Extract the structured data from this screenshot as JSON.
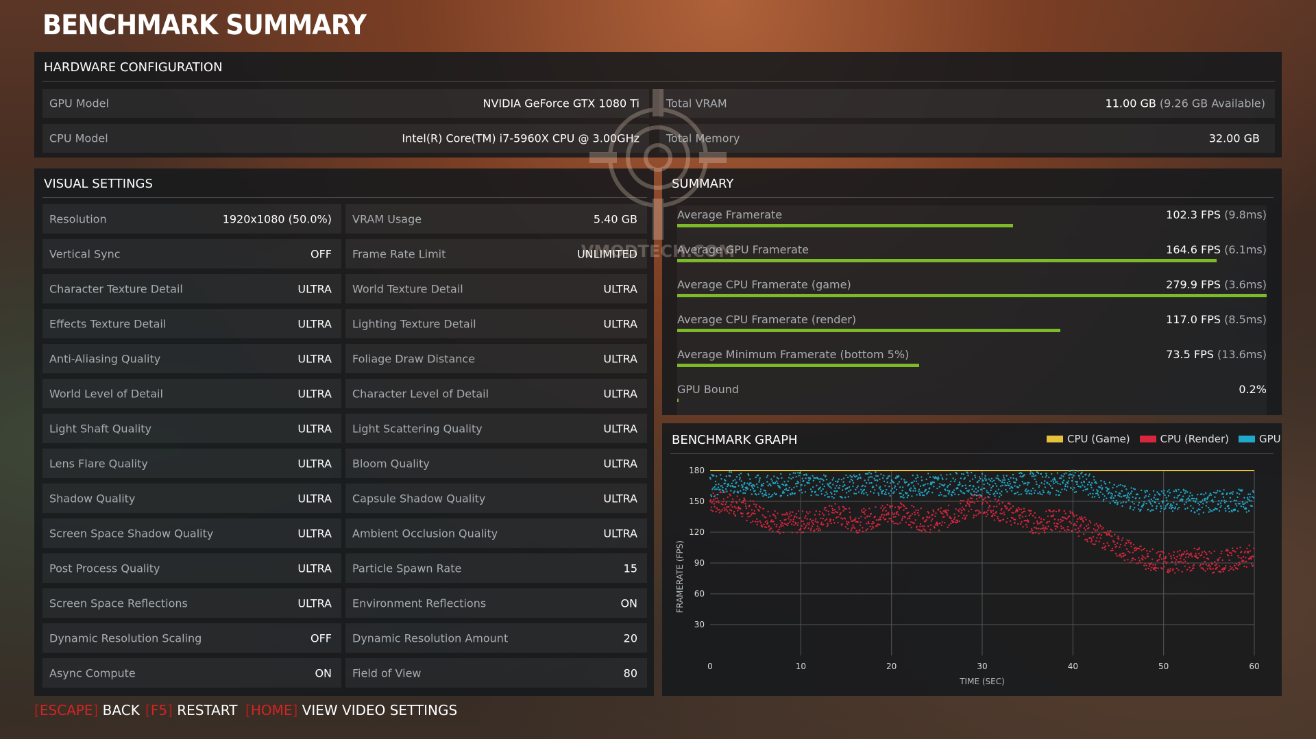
{
  "page_title": "BENCHMARK SUMMARY",
  "hardware": {
    "title": "HARDWARE CONFIGURATION",
    "gpu_label": "GPU Model",
    "gpu_value": "NVIDIA GeForce GTX 1080 Ti",
    "cpu_label": "CPU Model",
    "cpu_value": "Intel(R) Core(TM) i7-5960X CPU @ 3.00GHz",
    "vram_label": "Total VRAM",
    "vram_value": "11.00 GB",
    "vram_available": "(9.26 GB Available)",
    "memory_label": "Total Memory",
    "memory_value": "32.00 GB"
  },
  "visual": {
    "title": "VISUAL SETTINGS",
    "left": [
      {
        "label": "Resolution",
        "value": "1920x1080 (50.0%)"
      },
      {
        "label": "Vertical Sync",
        "value": "OFF"
      },
      {
        "label": "Character Texture Detail",
        "value": "ULTRA"
      },
      {
        "label": "Effects Texture Detail",
        "value": "ULTRA"
      },
      {
        "label": "Anti-Aliasing Quality",
        "value": "ULTRA"
      },
      {
        "label": "World Level of Detail",
        "value": "ULTRA"
      },
      {
        "label": "Light Shaft Quality",
        "value": "ULTRA"
      },
      {
        "label": "Lens Flare Quality",
        "value": "ULTRA"
      },
      {
        "label": "Shadow Quality",
        "value": "ULTRA"
      },
      {
        "label": "Screen Space Shadow Quality",
        "value": "ULTRA"
      },
      {
        "label": "Post Process Quality",
        "value": "ULTRA"
      },
      {
        "label": "Screen Space Reflections",
        "value": "ULTRA"
      },
      {
        "label": "Dynamic Resolution Scaling",
        "value": "OFF"
      },
      {
        "label": "Async Compute",
        "value": "ON"
      }
    ],
    "right": [
      {
        "label": "VRAM Usage",
        "value": "5.40 GB"
      },
      {
        "label": "Frame Rate Limit",
        "value": "UNLIMITED"
      },
      {
        "label": "World Texture Detail",
        "value": "ULTRA"
      },
      {
        "label": "Lighting Texture Detail",
        "value": "ULTRA"
      },
      {
        "label": "Foliage Draw Distance",
        "value": "ULTRA"
      },
      {
        "label": "Character Level of Detail",
        "value": "ULTRA"
      },
      {
        "label": "Light Scattering Quality",
        "value": "ULTRA"
      },
      {
        "label": "Bloom Quality",
        "value": "ULTRA"
      },
      {
        "label": "Capsule Shadow Quality",
        "value": "ULTRA"
      },
      {
        "label": "Ambient Occlusion Quality",
        "value": "ULTRA"
      },
      {
        "label": "Particle Spawn Rate",
        "value": "15"
      },
      {
        "label": "Environment Reflections",
        "value": "ON"
      },
      {
        "label": "Dynamic Resolution Amount",
        "value": "20"
      },
      {
        "label": "Field of View",
        "value": "80"
      }
    ]
  },
  "summary": {
    "title": "SUMMARY",
    "rows": [
      {
        "label": "Average Framerate",
        "value": "102.3 FPS",
        "detail": "(9.8ms)",
        "level": 0.57
      },
      {
        "label": "Average GPU Framerate",
        "value": "164.6 FPS",
        "detail": "(6.1ms)",
        "level": 0.915
      },
      {
        "label": "Average CPU Framerate (game)",
        "value": "279.9 FPS",
        "detail": "(3.6ms)",
        "level": 1.0
      },
      {
        "label": "Average CPU Framerate (render)",
        "value": "117.0 FPS",
        "detail": "(8.5ms)",
        "level": 0.65
      },
      {
        "label": "Average Minimum Framerate (bottom 5%)",
        "value": "73.5 FPS",
        "detail": "(13.6ms)",
        "level": 0.41
      },
      {
        "label": "GPU Bound",
        "value": "0.2%",
        "detail": "",
        "level": 0.002
      }
    ],
    "bar_color": "#7cba2a"
  },
  "graph": {
    "title": "BENCHMARK GRAPH",
    "legend": [
      {
        "name": "CPU (Game)",
        "color": "#e6c13a"
      },
      {
        "name": "CPU (Render)",
        "color": "#d7263d"
      },
      {
        "name": "GPU",
        "color": "#1fa8c9"
      }
    ]
  },
  "chart_data": {
    "type": "scatter",
    "title": "BENCHMARK GRAPH",
    "xlabel": "TIME (SEC)",
    "ylabel": "FRAMERATE (FPS)",
    "xlim": [
      0,
      60
    ],
    "ylim": [
      0,
      180
    ],
    "x_ticks": [
      0,
      10,
      20,
      30,
      40,
      50,
      60
    ],
    "y_ticks": [
      30,
      60,
      90,
      120,
      150,
      180
    ],
    "grid": true,
    "legend_position": "top-right",
    "series": [
      {
        "name": "CPU (Game)",
        "color": "#e6c13a",
        "x": [
          0,
          5,
          10,
          15,
          20,
          25,
          30,
          35,
          40,
          45,
          50,
          55,
          60
        ],
        "y": [
          180,
          180,
          180,
          180,
          180,
          180,
          180,
          180,
          180,
          180,
          180,
          180,
          180
        ]
      },
      {
        "name": "CPU (Render)",
        "color": "#d7263d",
        "x": [
          0,
          2,
          4,
          6,
          8,
          10,
          12,
          14,
          16,
          18,
          20,
          22,
          24,
          26,
          28,
          30,
          32,
          34,
          36,
          38,
          40,
          42,
          44,
          46,
          48,
          50,
          52,
          54,
          56,
          58,
          60
        ],
        "y": [
          150,
          148,
          142,
          135,
          128,
          130,
          132,
          138,
          130,
          134,
          140,
          136,
          130,
          134,
          142,
          148,
          140,
          136,
          128,
          132,
          130,
          120,
          112,
          102,
          95,
          90,
          92,
          94,
          90,
          95,
          98
        ]
      },
      {
        "name": "GPU",
        "color": "#1fa8c9",
        "x": [
          0,
          2,
          4,
          6,
          8,
          10,
          12,
          14,
          16,
          18,
          20,
          22,
          24,
          26,
          28,
          30,
          32,
          34,
          36,
          38,
          40,
          42,
          44,
          46,
          48,
          50,
          52,
          54,
          56,
          58,
          60
        ],
        "y": [
          165,
          168,
          166,
          164,
          166,
          168,
          166,
          163,
          166,
          168,
          165,
          164,
          167,
          166,
          168,
          166,
          164,
          167,
          168,
          166,
          170,
          165,
          158,
          154,
          150,
          150,
          152,
          148,
          150,
          151,
          150
        ]
      }
    ]
  },
  "footer": {
    "back_key": "ESCAPE",
    "back_label": "BACK",
    "restart_key": "F5",
    "restart_label": "RESTART",
    "home_key": "HOME",
    "home_label": "VIEW VIDEO SETTINGS"
  },
  "watermark": "VMODTECH.COM"
}
